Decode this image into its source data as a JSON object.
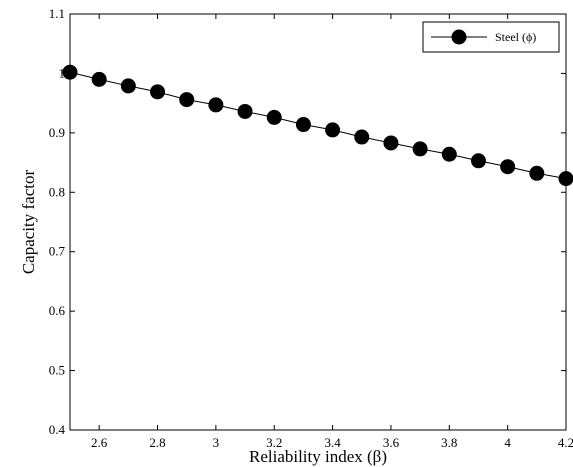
{
  "chart_data": {
    "type": "line",
    "title": "",
    "xlabel": "Reliability index (β)",
    "ylabel": "Capacity factor",
    "xlim": [
      2.5,
      4.2
    ],
    "ylim": [
      0.4,
      1.1
    ],
    "xticks": [
      2.6,
      2.8,
      3,
      3.2,
      3.4,
      3.6,
      3.8,
      4,
      4.2
    ],
    "xtick_labels": [
      "2.6",
      "2.8",
      "3",
      "3.2",
      "3.4",
      "3.6",
      "3.8",
      "4",
      "4.2"
    ],
    "yticks": [
      0.4,
      0.5,
      0.6,
      0.7,
      0.8,
      0.9,
      1,
      1.1
    ],
    "ytick_labels": [
      "0.4",
      "0.5",
      "0.6",
      "0.7",
      "0.8",
      "0.9",
      "1",
      "1.1"
    ],
    "grid": false,
    "legend_position": "top-right",
    "series": [
      {
        "name": "Steel (ϕ)",
        "color": "#000000",
        "marker": "filled-circle",
        "x": [
          2.5,
          2.6,
          2.7,
          2.8,
          2.9,
          3.0,
          3.1,
          3.2,
          3.3,
          3.4,
          3.5,
          3.6,
          3.7,
          3.8,
          3.9,
          4.0,
          4.1,
          4.2
        ],
        "y": [
          1.002,
          0.99,
          0.979,
          0.969,
          0.956,
          0.947,
          0.936,
          0.926,
          0.914,
          0.905,
          0.893,
          0.883,
          0.873,
          0.864,
          0.853,
          0.843,
          0.832,
          0.823
        ]
      }
    ]
  }
}
